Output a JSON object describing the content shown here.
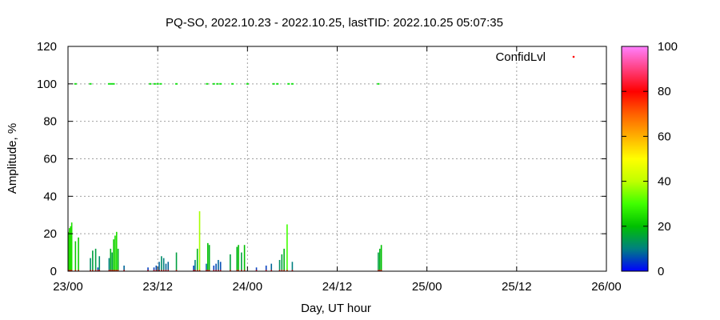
{
  "chart_data": {
    "type": "bar",
    "title": "PQ-SO, 2022.10.23 - 2022.10.25, lastTID: 2022.10.25 05:07:35",
    "xlabel": "Day, UT hour",
    "ylabel": "Amplitude, %",
    "xlim_hours": [
      0,
      72
    ],
    "ylim": [
      0,
      120
    ],
    "grid": true,
    "x_ticks": [
      {
        "hour": 0,
        "label": "23/00"
      },
      {
        "hour": 12,
        "label": "23/12"
      },
      {
        "hour": 24,
        "label": "24/00"
      },
      {
        "hour": 36,
        "label": "24/12"
      },
      {
        "hour": 48,
        "label": "25/00"
      },
      {
        "hour": 60,
        "label": "25/12"
      },
      {
        "hour": 72,
        "label": "26/00"
      }
    ],
    "y_ticks": [
      0,
      20,
      40,
      60,
      80,
      100,
      120
    ],
    "colorbar": {
      "range": [
        0,
        100
      ],
      "ticks": [
        0,
        20,
        40,
        60,
        80,
        100
      ]
    },
    "legend": {
      "label": "ConfidLvl",
      "position": "top-right"
    },
    "series": [
      {
        "kind": "amplitude",
        "points": [
          {
            "x": 0.1,
            "y": 21,
            "c": 25
          },
          {
            "x": 0.2,
            "y": 23,
            "c": 25
          },
          {
            "x": 0.35,
            "y": 24,
            "c": 25
          },
          {
            "x": 0.5,
            "y": 26,
            "c": 25
          },
          {
            "x": 1.0,
            "y": 16,
            "c": 22
          },
          {
            "x": 1.4,
            "y": 18,
            "c": 22
          },
          {
            "x": 3.0,
            "y": 7,
            "c": 12
          },
          {
            "x": 3.3,
            "y": 11,
            "c": 15
          },
          {
            "x": 3.7,
            "y": 12,
            "c": 15
          },
          {
            "x": 4.0,
            "y": 2,
            "c": 5
          },
          {
            "x": 4.2,
            "y": 8,
            "c": 12
          },
          {
            "x": 5.5,
            "y": 7,
            "c": 10
          },
          {
            "x": 5.7,
            "y": 12,
            "c": 18
          },
          {
            "x": 5.9,
            "y": 10,
            "c": 15
          },
          {
            "x": 6.1,
            "y": 17,
            "c": 22
          },
          {
            "x": 6.3,
            "y": 19,
            "c": 24
          },
          {
            "x": 6.5,
            "y": 21,
            "c": 25
          },
          {
            "x": 6.7,
            "y": 12,
            "c": 18
          },
          {
            "x": 7.5,
            "y": 3,
            "c": 8
          },
          {
            "x": 10.7,
            "y": 2,
            "c": 5
          },
          {
            "x": 11.5,
            "y": 2,
            "c": 5
          },
          {
            "x": 11.8,
            "y": 3,
            "c": 6
          },
          {
            "x": 12.2,
            "y": 5,
            "c": 8
          },
          {
            "x": 12.5,
            "y": 8,
            "c": 12
          },
          {
            "x": 12.8,
            "y": 7,
            "c": 10
          },
          {
            "x": 13.1,
            "y": 4,
            "c": 8
          },
          {
            "x": 13.4,
            "y": 5,
            "c": 8
          },
          {
            "x": 14.5,
            "y": 10,
            "c": 15
          },
          {
            "x": 16.8,
            "y": 3,
            "c": 5
          },
          {
            "x": 17.0,
            "y": 6,
            "c": 10
          },
          {
            "x": 17.3,
            "y": 12,
            "c": 18
          },
          {
            "x": 17.6,
            "y": 32,
            "c": 38
          },
          {
            "x": 18.5,
            "y": 4,
            "c": 8
          },
          {
            "x": 18.7,
            "y": 15,
            "c": 20
          },
          {
            "x": 18.9,
            "y": 14,
            "c": 18
          },
          {
            "x": 19.5,
            "y": 3,
            "c": 5
          },
          {
            "x": 19.8,
            "y": 4,
            "c": 6
          },
          {
            "x": 20.1,
            "y": 6,
            "c": 8
          },
          {
            "x": 20.4,
            "y": 5,
            "c": 6
          },
          {
            "x": 21.7,
            "y": 9,
            "c": 15
          },
          {
            "x": 22.6,
            "y": 13,
            "c": 18
          },
          {
            "x": 22.8,
            "y": 14,
            "c": 20
          },
          {
            "x": 23.2,
            "y": 10,
            "c": 15
          },
          {
            "x": 23.6,
            "y": 14,
            "c": 20
          },
          {
            "x": 25.2,
            "y": 2,
            "c": 5
          },
          {
            "x": 26.5,
            "y": 3,
            "c": 5
          },
          {
            "x": 27.2,
            "y": 4,
            "c": 8
          },
          {
            "x": 28.3,
            "y": 6,
            "c": 12
          },
          {
            "x": 28.6,
            "y": 9,
            "c": 15
          },
          {
            "x": 28.9,
            "y": 12,
            "c": 18
          },
          {
            "x": 29.3,
            "y": 25,
            "c": 30
          },
          {
            "x": 30.0,
            "y": 5,
            "c": 10
          },
          {
            "x": 41.5,
            "y": 10,
            "c": 15
          },
          {
            "x": 41.7,
            "y": 12,
            "c": 18
          },
          {
            "x": 41.9,
            "y": 14,
            "c": 20
          }
        ]
      },
      {
        "kind": "confidence",
        "points": [
          {
            "x": 1.0,
            "y": 100
          },
          {
            "x": 3.0,
            "y": 100
          },
          {
            "x": 5.5,
            "y": 100
          },
          {
            "x": 5.8,
            "y": 100
          },
          {
            "x": 6.1,
            "y": 100
          },
          {
            "x": 11.0,
            "y": 100
          },
          {
            "x": 11.6,
            "y": 100
          },
          {
            "x": 12.0,
            "y": 100
          },
          {
            "x": 12.4,
            "y": 100
          },
          {
            "x": 14.5,
            "y": 100
          },
          {
            "x": 18.6,
            "y": 100
          },
          {
            "x": 19.5,
            "y": 100
          },
          {
            "x": 20.0,
            "y": 100
          },
          {
            "x": 20.4,
            "y": 100
          },
          {
            "x": 22.0,
            "y": 100
          },
          {
            "x": 24.0,
            "y": 100
          },
          {
            "x": 27.5,
            "y": 100
          },
          {
            "x": 28.0,
            "y": 100
          },
          {
            "x": 29.5,
            "y": 100
          },
          {
            "x": 30.0,
            "y": 100
          },
          {
            "x": 41.5,
            "y": 100
          }
        ]
      }
    ]
  }
}
